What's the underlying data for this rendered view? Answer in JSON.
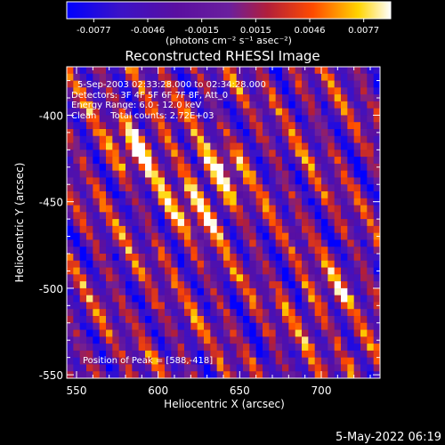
{
  "colorbar": {
    "ticks": [
      "-0.0077",
      "-0.0046",
      "-0.0015",
      "0.0015",
      "0.0046",
      "0.0077"
    ],
    "unit_label": "(photons cm⁻² s⁻¹ asec⁻²)",
    "colors": [
      "#0000ff",
      "#5a0fa0",
      "#6a1f9e",
      "#b21e3a",
      "#ff4b00",
      "#ffd400",
      "#ffffff"
    ]
  },
  "chart_data": {
    "type": "heatmap",
    "title": "Reconstructed RHESSI Image",
    "xlabel": "Heliocentric X (arcsec)",
    "ylabel": "Heliocentric Y (arcsec)",
    "xlim": [
      544,
      736
    ],
    "ylim": [
      -552,
      -372
    ],
    "xticks": [
      550,
      600,
      650,
      700
    ],
    "yticks": [
      -400,
      -450,
      -500,
      -550
    ],
    "value_range": [
      -0.0077,
      0.0077
    ],
    "peak": [
      588,
      -418
    ],
    "annotations": [
      "5-Sep-2003 02:33:28.000 to 02:34:28.000",
      "Detectors: 3F 4F 5F 6F 7F 8F, Att_0",
      "Energy Range: 6.0 - 12.0 keV",
      "Clean     Total counts: 2.72E+03"
    ],
    "peak_label": "Position of Peak = [588,-418]"
  },
  "timestamp": "5-May-2022 06:19"
}
